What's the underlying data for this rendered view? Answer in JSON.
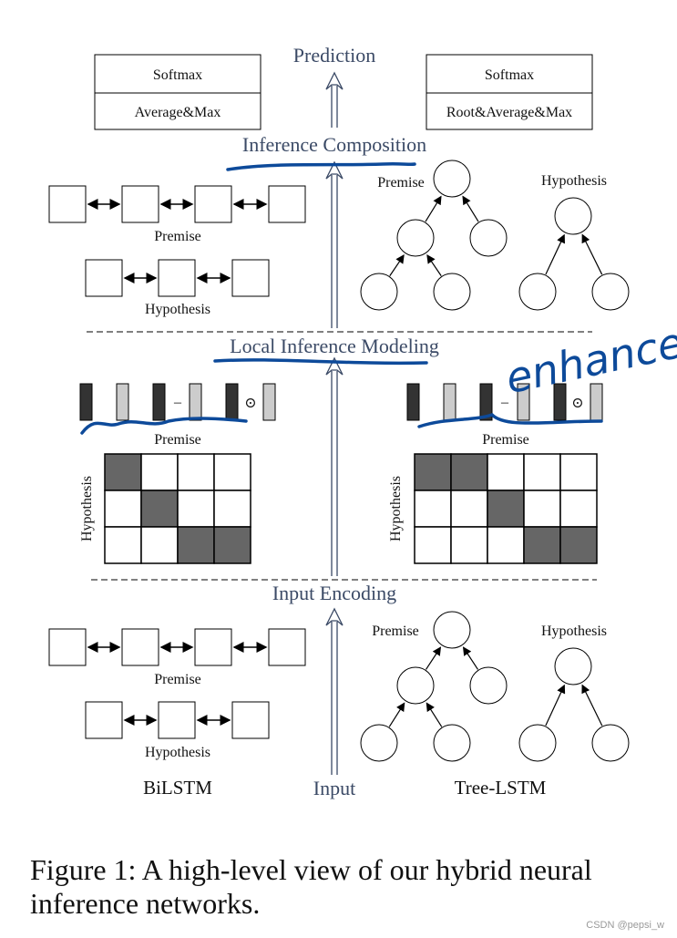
{
  "stages": {
    "prediction": "Prediction",
    "inference_composition": "Inference Composition",
    "local_inference_modeling": "Local Inference Modeling",
    "input_encoding": "Input Encoding",
    "input": "Input"
  },
  "left_pooling": {
    "top": "Softmax",
    "bottom": "Average&Max"
  },
  "right_pooling": {
    "top": "Softmax",
    "bottom": "Root&Average&Max"
  },
  "labels": {
    "premise": "Premise",
    "hypothesis": "Hypothesis"
  },
  "models": {
    "left": "BiLSTM",
    "right": "Tree-LSTM"
  },
  "operators": {
    "minus": "–",
    "elementwise_product": "⊙"
  },
  "alignment_left": [
    [
      1,
      0,
      0,
      0
    ],
    [
      0,
      1,
      0,
      0
    ],
    [
      0,
      0,
      1,
      1
    ]
  ],
  "alignment_right": [
    [
      1,
      1,
      0,
      0,
      0
    ],
    [
      0,
      0,
      1,
      0,
      0
    ],
    [
      0,
      0,
      0,
      1,
      1
    ]
  ],
  "annotation": "enhance",
  "colors": {
    "stage_text": "#3b4a66",
    "annotation_ink": "#0d4a9a",
    "dark_cell": "#666666",
    "dark_bar": "#333333",
    "light_bar": "#cccccc"
  },
  "caption": {
    "line1": "Figure 1:  A high-level view of our hybrid neural",
    "line2": "inference networks."
  },
  "watermark": "CSDN @pepsi_w"
}
